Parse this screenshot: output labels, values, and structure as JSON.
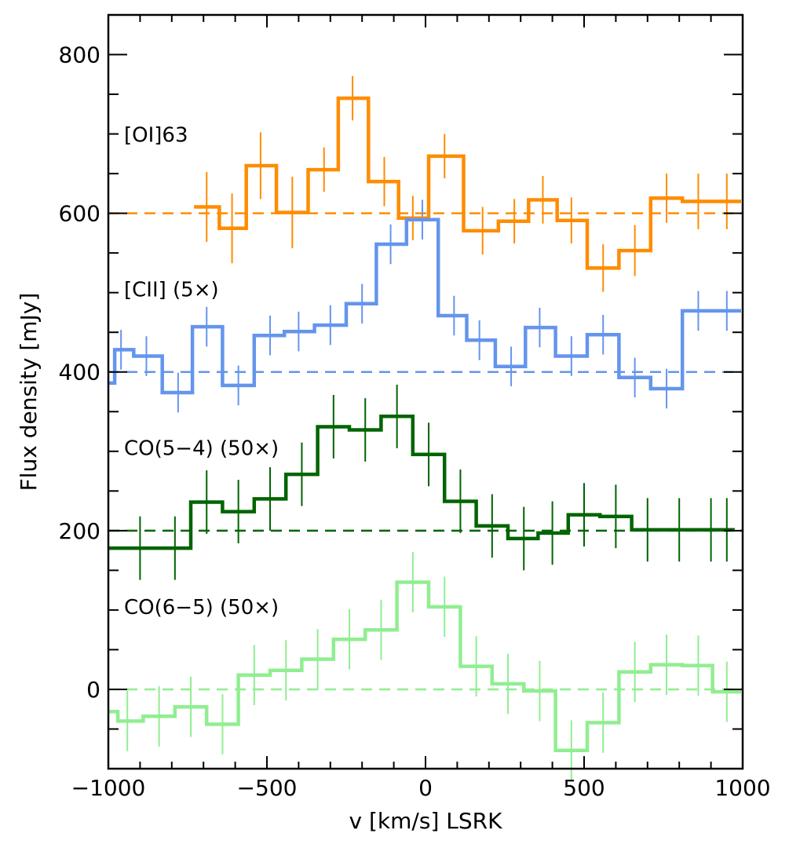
{
  "chart_data": {
    "type": "line",
    "style": "step",
    "xlabel": "v [km/s] LSRK",
    "ylabel": "Flux density [mJy]",
    "xlim": [
      -1000,
      1000
    ],
    "ylim": [
      -100,
      850
    ],
    "xticks": [
      -1000,
      -500,
      0,
      500,
      1000
    ],
    "xtick_labels": [
      "−1000",
      "−500",
      "0",
      "500",
      "1000"
    ],
    "yticks": [
      0,
      200,
      400,
      600,
      800
    ],
    "ytick_labels": [
      "0",
      "200",
      "400",
      "600",
      "800"
    ],
    "series": [
      {
        "name": "[OI]63",
        "label": "[OI]63",
        "color": "#ff8c00",
        "baseline": 600,
        "x": [
          -690,
          -610,
          -520,
          -420,
          -320,
          -230,
          -130,
          -40,
          60,
          180,
          280,
          370,
          460,
          560,
          660,
          760,
          860,
          950
        ],
        "values": [
          608,
          581,
          660,
          601,
          655,
          745,
          640,
          594,
          672,
          578,
          590,
          617,
          591,
          531,
          553,
          619,
          615,
          615
        ],
        "errors": [
          44,
          44,
          42,
          45,
          28,
          28,
          31,
          28,
          28,
          30,
          28,
          30,
          29,
          30,
          32,
          31,
          35,
          35
        ],
        "label_y": 700
      },
      {
        "name": "[CII] (5×)",
        "label": "[CII] (5×)",
        "color": "#6495ed",
        "baseline": 400,
        "x": [
          -1000,
          -960,
          -880,
          -780,
          -690,
          -590,
          -490,
          -400,
          -300,
          -200,
          -110,
          -10,
          90,
          170,
          270,
          360,
          460,
          560,
          660,
          760,
          860,
          950
        ],
        "values": [
          386,
          428,
          420,
          374,
          457,
          383,
          446,
          451,
          459,
          486,
          561,
          592,
          471,
          440,
          407,
          456,
          420,
          447,
          393,
          379,
          477,
          477
        ],
        "errors": [
          25,
          25,
          25,
          25,
          25,
          25,
          25,
          25,
          25,
          25,
          25,
          25,
          25,
          25,
          25,
          25,
          25,
          25,
          25,
          25,
          25,
          25
        ],
        "label_y": 505
      },
      {
        "name": "CO(5−4) (50×)",
        "label": "CO(5−4) (50×)",
        "color": "#006400",
        "baseline": 200,
        "x": [
          -1000,
          -900,
          -790,
          -690,
          -590,
          -490,
          -390,
          -290,
          -190,
          -90,
          10,
          110,
          210,
          310,
          400,
          500,
          600,
          700,
          800,
          900,
          950
        ],
        "values": [
          178,
          178,
          178,
          236,
          224,
          240,
          271,
          331,
          327,
          344,
          296,
          237,
          206,
          190,
          197,
          220,
          218,
          201,
          201,
          201,
          201
        ],
        "errors": [
          40,
          40,
          40,
          40,
          40,
          40,
          40,
          40,
          40,
          40,
          40,
          40,
          40,
          40,
          40,
          40,
          40,
          40,
          40,
          40,
          40
        ],
        "label_y": 305
      },
      {
        "name": "CO(6−5) (50×)",
        "label": "CO(6−5) (50×)",
        "color": "#90ee90",
        "baseline": 0,
        "x": [
          -1000,
          -940,
          -840,
          -740,
          -640,
          -540,
          -440,
          -340,
          -240,
          -140,
          -40,
          60,
          160,
          260,
          360,
          460,
          560,
          660,
          760,
          860,
          950
        ],
        "values": [
          -28,
          -40,
          -34,
          -22,
          -44,
          18,
          24,
          38,
          63,
          75,
          135,
          104,
          29,
          7,
          -2,
          -77,
          -42,
          22,
          31,
          30,
          -3
        ],
        "errors": [
          38,
          38,
          38,
          38,
          38,
          38,
          38,
          38,
          38,
          38,
          38,
          38,
          38,
          38,
          38,
          38,
          38,
          38,
          38,
          38,
          38
        ],
        "label_y": 105
      }
    ]
  }
}
